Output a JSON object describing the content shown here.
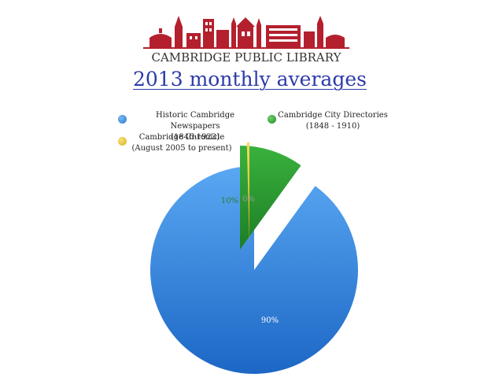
{
  "header": {
    "logo_text": "CAMBRIDGE PUBLIC LIBRARY",
    "title": "2013 monthly averages"
  },
  "legend": [
    {
      "line1": "Historic Cambridge Newspapers",
      "line2": "(1846-1923)"
    },
    {
      "line1": "Cambridge City Directories",
      "line2": "(1848 - 1910)"
    },
    {
      "line1": "Cambridge Chronicle",
      "line2": "(August 2005 to present)"
    }
  ],
  "colors": {
    "logo_red": "#b4202e",
    "title_blue": "#2c3aa8"
  },
  "chart_data": {
    "type": "pie",
    "title": "2013 monthly averages",
    "labels": [
      "Historic Cambridge Newspapers (1846-1923)",
      "Cambridge City Directories (1848 - 1910)",
      "Cambridge Chronicle (August 2005 to present)"
    ],
    "values": [
      90,
      10,
      0
    ],
    "data_labels": [
      "90%",
      "10%",
      "0%"
    ],
    "colors": [
      "#3d8fe6",
      "#2b9a35",
      "#e7c632"
    ],
    "exploded": [
      false,
      true,
      true
    ],
    "legend_position": "top"
  }
}
